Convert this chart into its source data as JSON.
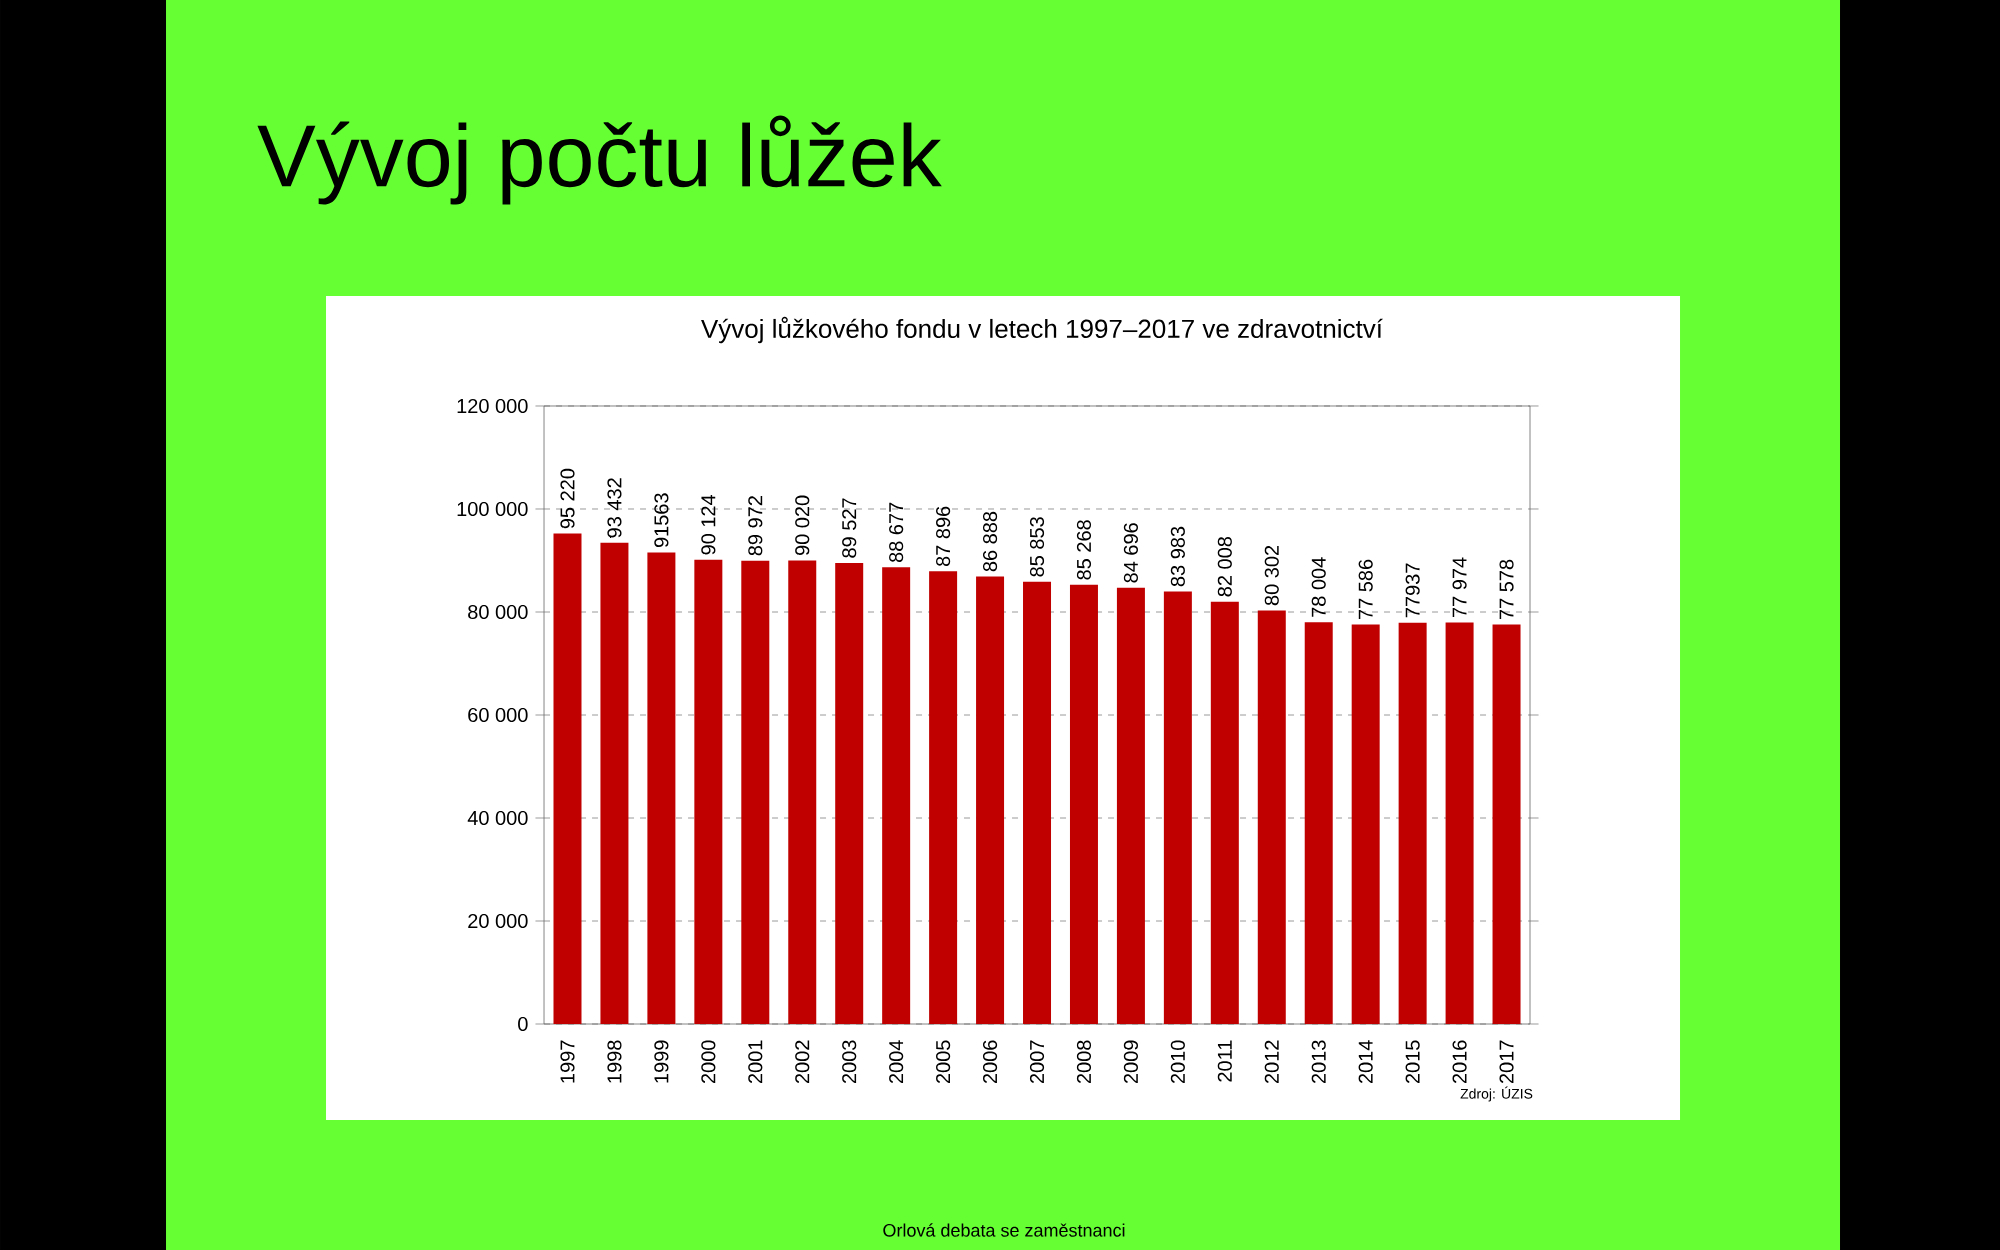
{
  "chart_data": {
    "type": "bar",
    "title": "Vývoj počtu lůžek",
    "subtitle": "Vývoj lůžkového fondu v letech 1997–2017 ve zdravotnictví",
    "categories": [
      "1997",
      "1998",
      "1999",
      "2000",
      "2001",
      "2002",
      "2003",
      "2004",
      "2005",
      "2006",
      "2007",
      "2008",
      "2009",
      "2010",
      "2011",
      "2012",
      "2013",
      "2014",
      "2015",
      "2016",
      "2017"
    ],
    "values": [
      95220,
      93432,
      91563,
      90124,
      89972,
      90020,
      89527,
      88677,
      87896,
      86888,
      85853,
      85268,
      84696,
      83983,
      82008,
      80302,
      78004,
      77586,
      77937,
      77974,
      77578
    ],
    "value_labels": [
      "95 220",
      "93 432",
      "91563",
      "90 124",
      "89 972",
      "90 020",
      "89 527",
      "88 677",
      "87 896",
      "86 888",
      "85 853",
      "85 268",
      "84 696",
      "83 983",
      "82 008",
      "80 302",
      "78 004",
      "77 586",
      "77937",
      "77 974",
      "77 578"
    ],
    "color": "#c00000",
    "ylim": [
      0,
      120000
    ],
    "yticks": [
      {
        "value": 0,
        "label": "0"
      },
      {
        "value": 20000,
        "label": "20 000"
      },
      {
        "value": 40000,
        "label": "40 000"
      },
      {
        "value": 60000,
        "label": "60 000"
      },
      {
        "value": 80000,
        "label": "80 000"
      },
      {
        "value": 100000,
        "label": "100 000"
      },
      {
        "value": 120000,
        "label": "120 000"
      }
    ],
    "grid": "y",
    "annotations": [
      "Zdroj: ÚZIS",
      "Orlová debata se zaměstnanci"
    ]
  }
}
